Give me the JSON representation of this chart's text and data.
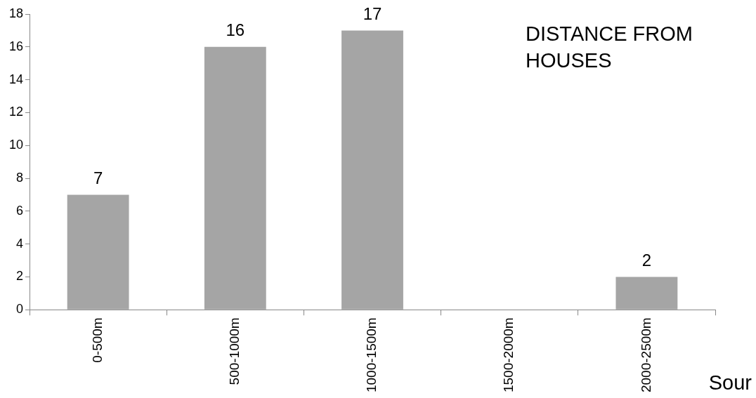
{
  "chart_data": {
    "type": "bar",
    "title": "DISTANCE FROM HOUSES",
    "categories": [
      "0-500m",
      "500-1000m",
      "1000-1500m",
      "1500-2000m",
      "2000-2500m"
    ],
    "values": [
      7,
      16,
      17,
      0,
      2
    ],
    "value_labels": [
      "7",
      "16",
      "17",
      null,
      "2"
    ],
    "color": "#a5a5a5",
    "ylim": [
      0,
      18
    ],
    "yticks": [
      0,
      2,
      4,
      6,
      8,
      10,
      12,
      14,
      16,
      18
    ],
    "grid": false,
    "legend": false,
    "annotations": [
      "Sour"
    ]
  }
}
